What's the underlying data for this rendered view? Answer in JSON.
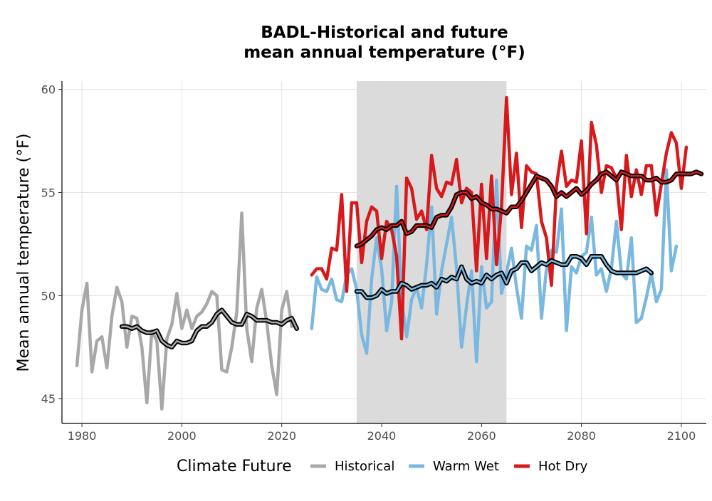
{
  "chart_data": {
    "type": "line",
    "title_line1": "BADL-Historical and future",
    "title_line2": "mean annual temperature (°F)",
    "xlabel": "",
    "ylabel": "Mean annual temperature (°F)",
    "xlim": [
      1976,
      2105
    ],
    "ylim": [
      43.8,
      60.4
    ],
    "x_ticks": [
      1980,
      2000,
      2020,
      2040,
      2060,
      2080,
      2100
    ],
    "y_ticks": [
      45,
      50,
      55,
      60
    ],
    "grid": true,
    "shaded_period": [
      2035,
      2065
    ],
    "legend": {
      "title": "Climate Future",
      "position": "bottom",
      "items": [
        "Historical",
        "Warm Wet",
        "Hot Dry"
      ]
    },
    "series": [
      {
        "name": "Historical",
        "color": "#a8a8a8",
        "x_start": 1979,
        "values": [
          46.6,
          49.3,
          50.6,
          46.3,
          47.8,
          48.0,
          46.5,
          49.0,
          50.4,
          49.7,
          47.5,
          49.0,
          48.9,
          47.5,
          44.8,
          48.3,
          47.8,
          44.5,
          47.9,
          48.6,
          50.1,
          48.4,
          49.3,
          48.4,
          49.0,
          49.2,
          49.6,
          50.2,
          50.0,
          46.4,
          46.3,
          47.5,
          49.2,
          54.0,
          48.4,
          46.8,
          49.4,
          50.3,
          48.7,
          46.6,
          45.2,
          49.3,
          50.2,
          48.5
        ]
      },
      {
        "name": "Historical (rolling mean)",
        "color": "#a8a8a8",
        "x_start": 1988,
        "values": [
          48.5,
          48.5,
          48.4,
          48.5,
          48.3,
          48.2,
          48.2,
          48.3,
          47.8,
          47.6,
          47.5,
          47.8,
          47.7,
          47.7,
          47.8,
          48.3,
          48.5,
          48.5,
          48.7,
          49.1,
          49.3,
          49.0,
          48.7,
          48.6,
          48.6,
          49.1,
          49.0,
          48.8,
          48.8,
          48.8,
          48.7,
          48.7,
          48.6,
          48.8,
          48.9,
          48.4
        ]
      },
      {
        "name": "Warm Wet",
        "color": "#7ab8e0",
        "x_start": 2026,
        "values": [
          48.4,
          50.9,
          50.3,
          50.2,
          50.8,
          49.8,
          49.7,
          51.0,
          51.3,
          50.3,
          48.1,
          47.2,
          50.8,
          52.8,
          51.3,
          48.3,
          49.7,
          55.3,
          49.8,
          48.0,
          49.8,
          50.4,
          49.4,
          51.5,
          54.3,
          49.1,
          51.2,
          52.5,
          53.8,
          51.3,
          47.5,
          49.5,
          51.2,
          46.8,
          51.4,
          49.4,
          49.7,
          55.6,
          50.1,
          51.1,
          52.3,
          50.4,
          48.9,
          52.4,
          52.2,
          53.4,
          48.9,
          51.3,
          52.2,
          52.1,
          54.2,
          48.3,
          51.4,
          51.1,
          51.9,
          52.1,
          53.8,
          51.0,
          51.3,
          50.2,
          51.3,
          53.6,
          51.1,
          50.8,
          52.8,
          48.7,
          48.9,
          49.9,
          51.1,
          49.7,
          50.3,
          56.1,
          51.2,
          52.4
        ]
      },
      {
        "name": "Warm Wet (rolling mean)",
        "color": "#7ab8e0",
        "x_start": 2035,
        "values": [
          50.2,
          50.2,
          49.9,
          49.9,
          50.0,
          50.3,
          50.1,
          50.2,
          50.2,
          50.6,
          50.5,
          50.3,
          50.4,
          50.5,
          50.5,
          50.6,
          50.4,
          50.8,
          50.7,
          50.9,
          50.8,
          51.4,
          50.8,
          50.6,
          50.7,
          50.6,
          51.0,
          50.8,
          51.0,
          51.1,
          50.6,
          51.2,
          51.3,
          51.6,
          51.6,
          51.2,
          51.4,
          51.6,
          51.5,
          51.7,
          51.6,
          51.5,
          51.5,
          51.9,
          51.9,
          51.8,
          51.5,
          51.9,
          51.9,
          51.9,
          51.5,
          51.2,
          51.1,
          51.1,
          51.1,
          51.1,
          51.1,
          51.2,
          51.3,
          51.1
        ]
      },
      {
        "name": "Hot Dry",
        "color": "#d7191c",
        "x_start": 2026,
        "values": [
          51.0,
          51.3,
          51.3,
          50.8,
          52.3,
          52.2,
          54.9,
          50.2,
          54.5,
          54.5,
          51.6,
          53.6,
          54.3,
          54.1,
          51.8,
          53.6,
          53.2,
          51.9,
          47.9,
          55.7,
          55.2,
          53.7,
          54.1,
          53.2,
          56.8,
          55.2,
          54.8,
          55.5,
          55.4,
          56.6,
          54.5,
          55.2,
          55.0,
          51.2,
          55.4,
          51.8,
          55.8,
          51.5,
          54.3,
          59.6,
          54.9,
          56.9,
          53.3,
          56.3,
          56.0,
          55.9,
          53.6,
          52.8,
          50.5,
          55.3,
          57.0,
          55.3,
          55.6,
          55.5,
          57.5,
          53.0,
          58.4,
          57.3,
          55.0,
          56.3,
          56.2,
          55.7,
          53.2,
          56.8,
          54.8,
          56.1,
          54.9,
          56.3,
          56.3,
          53.9,
          55.4,
          56.9,
          57.9,
          57.4,
          55.2,
          57.2
        ]
      },
      {
        "name": "Hot Dry (rolling mean)",
        "color": "#d7191c",
        "x_start": 2035,
        "values": [
          52.4,
          52.5,
          52.7,
          52.9,
          53.2,
          53.3,
          53.2,
          53.4,
          53.4,
          53.6,
          53.0,
          53.1,
          53.4,
          53.4,
          53.4,
          53.3,
          53.8,
          53.9,
          53.9,
          54.3,
          54.9,
          55.0,
          55.0,
          54.7,
          54.8,
          54.5,
          54.4,
          54.2,
          54.2,
          54.1,
          54.0,
          54.3,
          54.3,
          54.6,
          55.0,
          55.4,
          55.8,
          55.7,
          55.6,
          55.3,
          54.8,
          55.0,
          54.8,
          55.0,
          55.2,
          54.9,
          55.1,
          55.4,
          55.6,
          55.9,
          56.0,
          55.8,
          55.6,
          56.0,
          55.9,
          55.8,
          55.8,
          55.8,
          55.6,
          55.6,
          55.7,
          55.5,
          55.5,
          55.6,
          55.9,
          55.9,
          55.9,
          55.9,
          56.0,
          55.9
        ]
      }
    ]
  }
}
